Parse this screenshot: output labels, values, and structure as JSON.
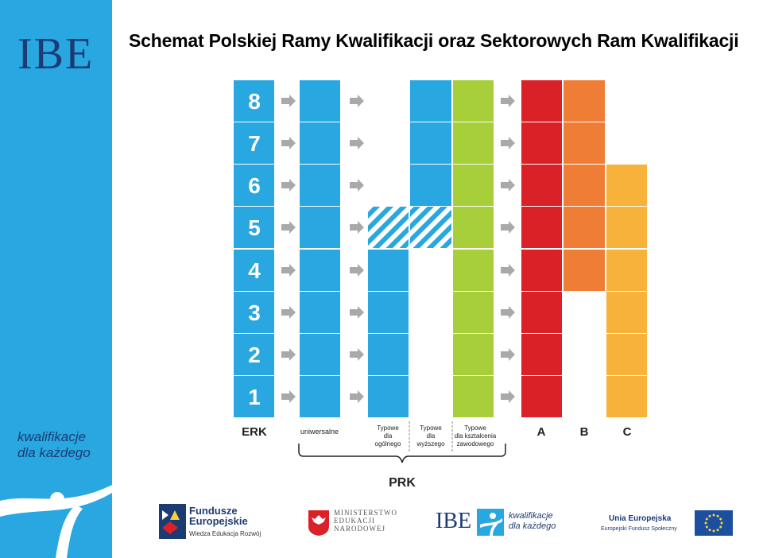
{
  "title": "Schemat Polskiej Ramy Kwalifikacji oraz Sektorowych Ram Kwalifikacji",
  "sidebar": {
    "logo": "IBE",
    "slogan_line1": "kwalifikacje",
    "slogan_line2": "dla każdego"
  },
  "levels": [
    "8",
    "7",
    "6",
    "5",
    "4",
    "3",
    "2",
    "1"
  ],
  "columns": {
    "erk": "ERK",
    "universal": "uniwersalne",
    "general": [
      "Typowe",
      "dla",
      "ogólnego"
    ],
    "higher": [
      "Typowe",
      "dla",
      "wyższego"
    ],
    "vocational": [
      "Typowe",
      "dla kształcenia",
      "zawodowego"
    ],
    "a": "A",
    "b": "B",
    "c": "C",
    "prk": "PRK"
  },
  "colors": {
    "blue": "#28a7e1",
    "green": "#a6cf39",
    "red": "#da2128",
    "orange": "#f07d35",
    "yellow": "#f7b23b",
    "arrow": "#a9a9a9"
  },
  "footer": {
    "fe_line1": "Fundusze",
    "fe_line2": "Europejskie",
    "fe_line3": "Wiedza Edukacja Rozwój",
    "men_line1": "MINISTERSTWO",
    "men_line2": "EDUKACJI",
    "men_line3": "NARODOWEJ",
    "ibe": "IBE",
    "ibe_slogan1": "kwalifikacje",
    "ibe_slogan2": "dla każdego",
    "ue_line1": "Unia Europejska",
    "ue_line2": "Europejski Fundusz Społeczny"
  }
}
